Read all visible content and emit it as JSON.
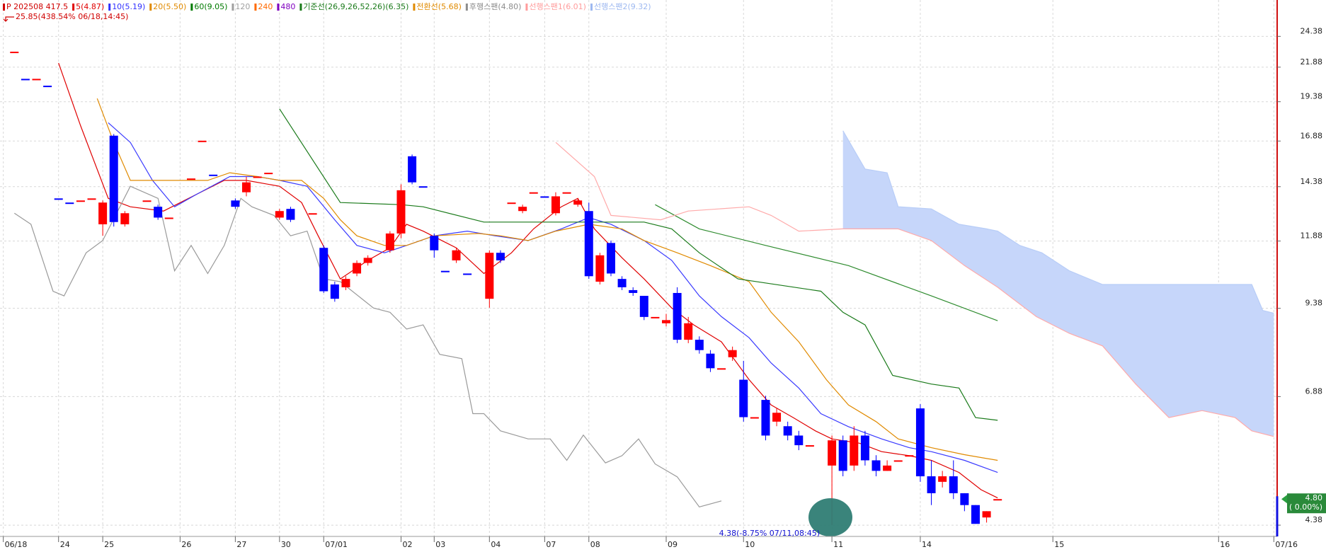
{
  "chart_data": {
    "type": "candlestick",
    "legend": [
      {
        "text": "P 202508 417.5",
        "color": "#d00000"
      },
      {
        "text": "5(4.87)",
        "color": "#e00000"
      },
      {
        "text": "10(5.19)",
        "color": "#3030ff"
      },
      {
        "text": "20(5.50)",
        "color": "#e08a00"
      },
      {
        "text": "60(9.05)",
        "color": "#007a00"
      },
      {
        "text": "120",
        "color": "#a0a0a0"
      },
      {
        "text": "240",
        "color": "#ff6a00"
      },
      {
        "text": "480",
        "color": "#8000c0"
      },
      {
        "text": "기준선(26,9,26,52,26)(6.35)",
        "color": "#1a7a1a"
      },
      {
        "text": "전환선(5.68)",
        "color": "#e08a00"
      },
      {
        "text": "후행스팬(4.80)",
        "color": "#8c8c8c"
      },
      {
        "text": "선행스팬1(6.01)",
        "color": "#ff9c9c"
      },
      {
        "text": "선행스팬2(9.32)",
        "color": "#9db8f0"
      }
    ],
    "high_note": "25.85(438.54% 06/18,14:45)",
    "low_note": "4.38(-8.75% 07/11,08:45)",
    "last_price": {
      "value": 4.8,
      "label": "4.80"
    },
    "last_change": "( 0.00%)",
    "log_y": true,
    "grid": true,
    "up_color": "#ff0000",
    "down_color": "#0000ff",
    "cloud_color": "#c6d6fa",
    "xlim": [
      -0.3,
      115.3
    ],
    "ylim": [
      4.21,
      27.7
    ],
    "yticks": [
      4.38,
      6.88,
      9.38,
      11.88,
      14.38,
      16.88,
      19.38,
      21.88,
      24.38
    ],
    "xticks": [
      {
        "value": 0,
        "label": "06/18"
      },
      {
        "value": 5,
        "label": "24"
      },
      {
        "value": 9,
        "label": "25"
      },
      {
        "value": 16,
        "label": "26"
      },
      {
        "value": 21,
        "label": "27"
      },
      {
        "value": 25,
        "label": "30"
      },
      {
        "value": 29,
        "label": "07/01"
      },
      {
        "value": 36,
        "label": "02"
      },
      {
        "value": 39,
        "label": "03"
      },
      {
        "value": 44,
        "label": "04"
      },
      {
        "value": 49,
        "label": "07"
      },
      {
        "value": 53,
        "label": "08"
      },
      {
        "value": 60,
        "label": "09"
      },
      {
        "value": 67,
        "label": "10"
      },
      {
        "value": 75,
        "label": "11"
      },
      {
        "value": 83,
        "label": "14"
      },
      {
        "value": 95,
        "label": "15"
      },
      {
        "value": 110,
        "label": "16"
      },
      {
        "value": 115,
        "label": "07/16"
      }
    ],
    "candles": {
      "x": [
        1,
        2,
        3,
        4,
        5,
        6,
        7,
        8,
        9,
        10,
        11,
        13,
        14,
        15,
        17,
        18,
        19,
        21,
        22,
        23,
        24,
        25,
        26,
        28,
        29,
        30,
        31,
        32,
        33,
        35,
        36,
        37,
        38,
        39,
        40,
        41,
        42,
        44,
        45,
        46,
        47,
        48,
        49,
        50,
        51,
        52,
        53,
        54,
        55,
        56,
        57,
        58,
        59,
        60,
        61,
        62,
        63,
        64,
        65,
        66,
        67,
        68,
        69,
        70,
        71,
        72,
        73,
        75,
        76,
        77,
        78,
        79,
        80,
        81,
        82,
        83,
        84,
        85,
        86,
        87,
        88,
        89,
        90
      ],
      "open": [
        23.1,
        21.0,
        21.0,
        20.5,
        13.8,
        13.6,
        13.7,
        13.8,
        12.6,
        17.2,
        12.6,
        13.7,
        13.4,
        12.9,
        14.8,
        16.9,
        15.0,
        13.7,
        14.1,
        14.9,
        15.1,
        12.9,
        13.3,
        13.1,
        11.6,
        10.2,
        10.1,
        10.6,
        11.0,
        11.5,
        12.2,
        16.0,
        14.4,
        12.1,
        10.7,
        11.1,
        10.6,
        9.7,
        11.4,
        13.6,
        13.2,
        14.1,
        13.9,
        13.1,
        14.1,
        13.5,
        13.2,
        10.3,
        11.8,
        10.4,
        10.0,
        9.8,
        9.1,
        8.9,
        9.9,
        8.4,
        8.4,
        8.0,
        7.6,
        7.9,
        7.3,
        6.4,
        6.8,
        6.3,
        6.2,
        6.0,
        5.8,
        5.4,
        5.9,
        5.4,
        6.0,
        5.5,
        5.3,
        5.5,
        5.6,
        6.6,
        5.2,
        5.1,
        5.2,
        4.9,
        4.7,
        4.5,
        4.8
      ],
      "high": [
        23.1,
        21.0,
        21.0,
        20.5,
        13.8,
        13.6,
        13.7,
        13.8,
        13.7,
        17.3,
        13.2,
        13.7,
        13.5,
        12.9,
        14.8,
        16.9,
        15.0,
        13.8,
        14.9,
        14.9,
        15.1,
        13.3,
        13.4,
        13.1,
        11.7,
        10.3,
        10.5,
        11.1,
        11.3,
        12.3,
        14.5,
        16.1,
        14.4,
        12.2,
        10.7,
        11.6,
        10.6,
        11.5,
        11.5,
        13.6,
        13.5,
        14.1,
        13.9,
        14.1,
        14.1,
        13.8,
        13.6,
        11.4,
        11.9,
        10.5,
        10.1,
        9.8,
        9.1,
        9.2,
        10.1,
        9.1,
        8.5,
        8.1,
        7.6,
        8.2,
        7.8,
        6.4,
        6.9,
        6.6,
        6.3,
        6.1,
        5.8,
        6.0,
        6.0,
        6.2,
        6.1,
        5.6,
        5.5,
        5.5,
        5.6,
        6.7,
        5.5,
        5.3,
        5.5,
        4.9,
        4.7,
        4.6,
        4.8
      ],
      "low": [
        23.1,
        21.0,
        21.0,
        20.5,
        13.8,
        13.6,
        13.7,
        13.8,
        12.1,
        12.5,
        12.5,
        13.7,
        12.8,
        12.9,
        14.8,
        16.9,
        15.0,
        13.3,
        13.9,
        14.9,
        15.1,
        12.8,
        12.7,
        13.1,
        9.9,
        9.6,
        10.0,
        10.5,
        10.9,
        11.4,
        12.0,
        14.5,
        14.4,
        11.2,
        10.7,
        11.0,
        10.6,
        9.4,
        11.0,
        13.6,
        13.1,
        14.1,
        13.9,
        13.0,
        14.1,
        13.4,
        10.4,
        10.2,
        10.5,
        10.0,
        9.8,
        9.0,
        9.1,
        8.8,
        8.3,
        8.3,
        8.0,
        7.5,
        7.6,
        7.8,
        6.3,
        6.4,
        5.9,
        6.2,
        5.9,
        5.7,
        5.8,
        4.38,
        5.2,
        5.3,
        5.4,
        5.2,
        5.3,
        5.5,
        5.6,
        5.1,
        4.7,
        5.0,
        4.8,
        4.6,
        4.4,
        4.42,
        4.8
      ],
      "close": [
        23.1,
        21.0,
        21.0,
        20.5,
        13.8,
        13.6,
        13.7,
        13.8,
        13.6,
        12.7,
        13.1,
        13.7,
        12.9,
        12.9,
        14.8,
        16.9,
        15.0,
        13.4,
        14.6,
        14.9,
        15.1,
        13.2,
        12.8,
        13.1,
        9.96,
        9.7,
        10.4,
        11.0,
        11.2,
        12.2,
        14.2,
        14.6,
        14.4,
        11.5,
        10.7,
        11.5,
        10.6,
        11.4,
        11.1,
        13.6,
        13.4,
        14.1,
        13.9,
        13.9,
        14.1,
        13.7,
        10.5,
        11.3,
        10.6,
        10.1,
        9.9,
        9.1,
        9.1,
        9.0,
        8.4,
        8.9,
        8.1,
        7.6,
        7.6,
        8.1,
        6.4,
        6.4,
        6.0,
        6.5,
        6.0,
        5.8,
        5.8,
        5.9,
        5.3,
        6.0,
        5.5,
        5.3,
        5.4,
        5.5,
        5.6,
        5.2,
        4.9,
        5.2,
        4.9,
        4.7,
        4.4,
        4.6,
        4.8
      ]
    },
    "lines": [
      {
        "color": "#e00000",
        "x": [
          5,
          7,
          9.5,
          11.5,
          14.5,
          17.5,
          20,
          22,
          25,
          27,
          28.5,
          30.5,
          33,
          35,
          36.5,
          38,
          41,
          43.5,
          46,
          48,
          50.5,
          52,
          53.5,
          56,
          58,
          60.5,
          62.5,
          65,
          67.5,
          69.5,
          71.5,
          73.5,
          75,
          77.5,
          79.5,
          82,
          84,
          86.5,
          88.5,
          90
        ],
        "values": [
          22.2,
          17.8,
          13.8,
          13.4,
          13.2,
          14.0,
          14.7,
          14.7,
          14.4,
          13.6,
          12.1,
          10.4,
          11.1,
          11.6,
          12.6,
          12.3,
          11.6,
          10.6,
          11.4,
          12.4,
          13.4,
          13.8,
          12.4,
          11.2,
          10.4,
          9.39,
          8.85,
          8.34,
          7.3,
          6.68,
          6.39,
          6.1,
          5.93,
          5.84,
          5.67,
          5.59,
          5.5,
          5.27,
          4.96,
          4.82
        ]
      },
      {
        "color": "#3a3aff",
        "x": [
          9.5,
          11.5,
          13.5,
          15.5,
          17.5,
          20.5,
          23,
          25,
          27.5,
          30,
          32,
          34.5,
          36.5,
          39,
          42,
          44.5,
          47.5,
          50.5,
          53,
          55,
          58,
          60.5,
          63,
          65,
          67.5,
          69.5,
          72,
          74,
          76.5,
          79.5,
          82,
          84,
          87,
          90
        ],
        "values": [
          18.0,
          16.8,
          14.7,
          13.4,
          14.0,
          14.9,
          14.9,
          14.7,
          14.4,
          12.8,
          11.7,
          11.4,
          11.7,
          12.1,
          12.3,
          12.1,
          11.9,
          12.4,
          12.9,
          12.6,
          11.9,
          11.1,
          9.8,
          9.11,
          8.46,
          7.74,
          7.09,
          6.48,
          6.19,
          5.93,
          5.75,
          5.67,
          5.5,
          5.27
        ]
      },
      {
        "color": "#e08a00",
        "x": [
          8.5,
          10,
          11.5,
          15.5,
          18.5,
          20.5,
          23,
          25,
          27,
          29,
          30.5,
          32,
          34.5,
          36.5,
          39,
          43,
          45,
          47.5,
          50,
          53,
          56,
          58,
          61,
          64,
          67.5,
          69.5,
          72,
          74.5,
          76.5,
          79,
          81,
          84,
          87,
          90
        ],
        "values": [
          19.6,
          16.8,
          14.7,
          14.7,
          14.7,
          15.1,
          14.9,
          14.7,
          14.7,
          13.8,
          12.8,
          12.1,
          11.7,
          11.7,
          12.1,
          12.2,
          12.1,
          11.9,
          12.3,
          12.6,
          12.4,
          11.9,
          11.4,
          10.9,
          10.3,
          9.25,
          8.34,
          7.3,
          6.68,
          6.3,
          5.93,
          5.75,
          5.61,
          5.5
        ]
      },
      {
        "color": "#1a7a1a",
        "x": [
          25,
          30.5,
          36,
          38,
          43.5,
          58,
          60.5,
          63,
          66.5,
          74,
          76,
          78,
          80.5,
          84,
          86.5,
          88,
          90
        ],
        "values": [
          18.9,
          13.6,
          13.5,
          13.4,
          12.7,
          12.7,
          12.4,
          11.4,
          10.4,
          9.96,
          9.25,
          8.85,
          7.41,
          7.19,
          7.09,
          6.39,
          6.33
        ]
      },
      {
        "color": "#2e8b2e",
        "x": [
          59,
          63,
          69,
          76.5,
          84,
          90
        ],
        "values": [
          13.5,
          12.4,
          11.7,
          10.9,
          9.8,
          8.98
        ]
      },
      {
        "color": "#9a9a9a",
        "x": [
          1,
          2.5,
          4.5,
          5.5,
          7.5,
          9,
          11.5,
          14,
          15.5,
          17,
          18.5,
          20,
          21.5,
          22.5,
          24.5,
          26,
          27.5,
          29,
          30.5,
          33.5,
          35,
          36.5,
          38,
          39.5,
          41.5,
          42.5,
          43.5,
          45,
          47.5,
          49.5,
          51,
          52.5,
          54.5,
          56,
          57.5,
          59,
          61,
          63,
          65
        ],
        "values": [
          13.1,
          12.6,
          9.96,
          9.8,
          11.4,
          11.9,
          14.4,
          13.8,
          10.7,
          11.7,
          10.6,
          11.7,
          13.8,
          13.4,
          13.0,
          12.1,
          12.3,
          10.4,
          10.3,
          9.39,
          9.25,
          8.72,
          8.85,
          7.98,
          7.86,
          6.48,
          6.48,
          6.1,
          5.93,
          5.93,
          5.5,
          6.01,
          5.45,
          5.59,
          5.93,
          5.43,
          5.19,
          4.67,
          4.77
        ]
      },
      {
        "color": "#ffaaaa",
        "x": [
          50,
          53.5,
          55,
          59.5,
          62,
          67.5,
          69.5,
          72,
          76,
          81,
          84,
          87,
          90,
          93.5,
          96.5,
          99.5,
          102.5,
          105.5,
          108.5,
          111.5,
          113,
          115
        ],
        "values": [
          16.8,
          14.9,
          13.0,
          12.8,
          13.2,
          13.4,
          13.0,
          12.3,
          12.4,
          12.4,
          11.9,
          10.9,
          10.1,
          9.11,
          8.59,
          8.22,
          7.19,
          6.39,
          6.55,
          6.39,
          6.1,
          5.98
        ]
      },
      {
        "color": "#b8cdf7",
        "x": [
          76,
          78,
          80,
          81,
          84,
          86.5,
          89,
          90,
          92,
          94,
          96.5,
          99.5,
          108.5,
          113,
          114,
          115
        ],
        "values": [
          17.5,
          15.3,
          15.1,
          13.4,
          13.3,
          12.6,
          12.4,
          12.3,
          11.7,
          11.4,
          10.7,
          10.2,
          10.2,
          10.2,
          9.31,
          9.22
        ]
      }
    ]
  }
}
